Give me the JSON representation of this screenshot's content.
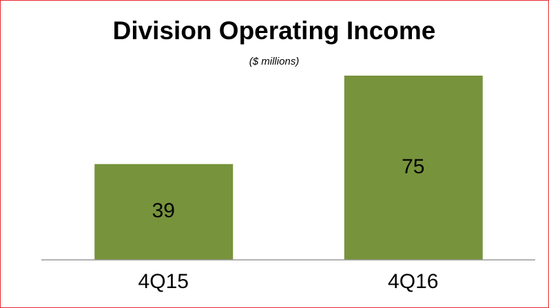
{
  "chart_data": {
    "type": "bar",
    "title": "Division Operating Income",
    "subtitle": "($ millions)",
    "categories": [
      "4Q15",
      "4Q16"
    ],
    "values": [
      39,
      75
    ],
    "color": "#77933c"
  }
}
